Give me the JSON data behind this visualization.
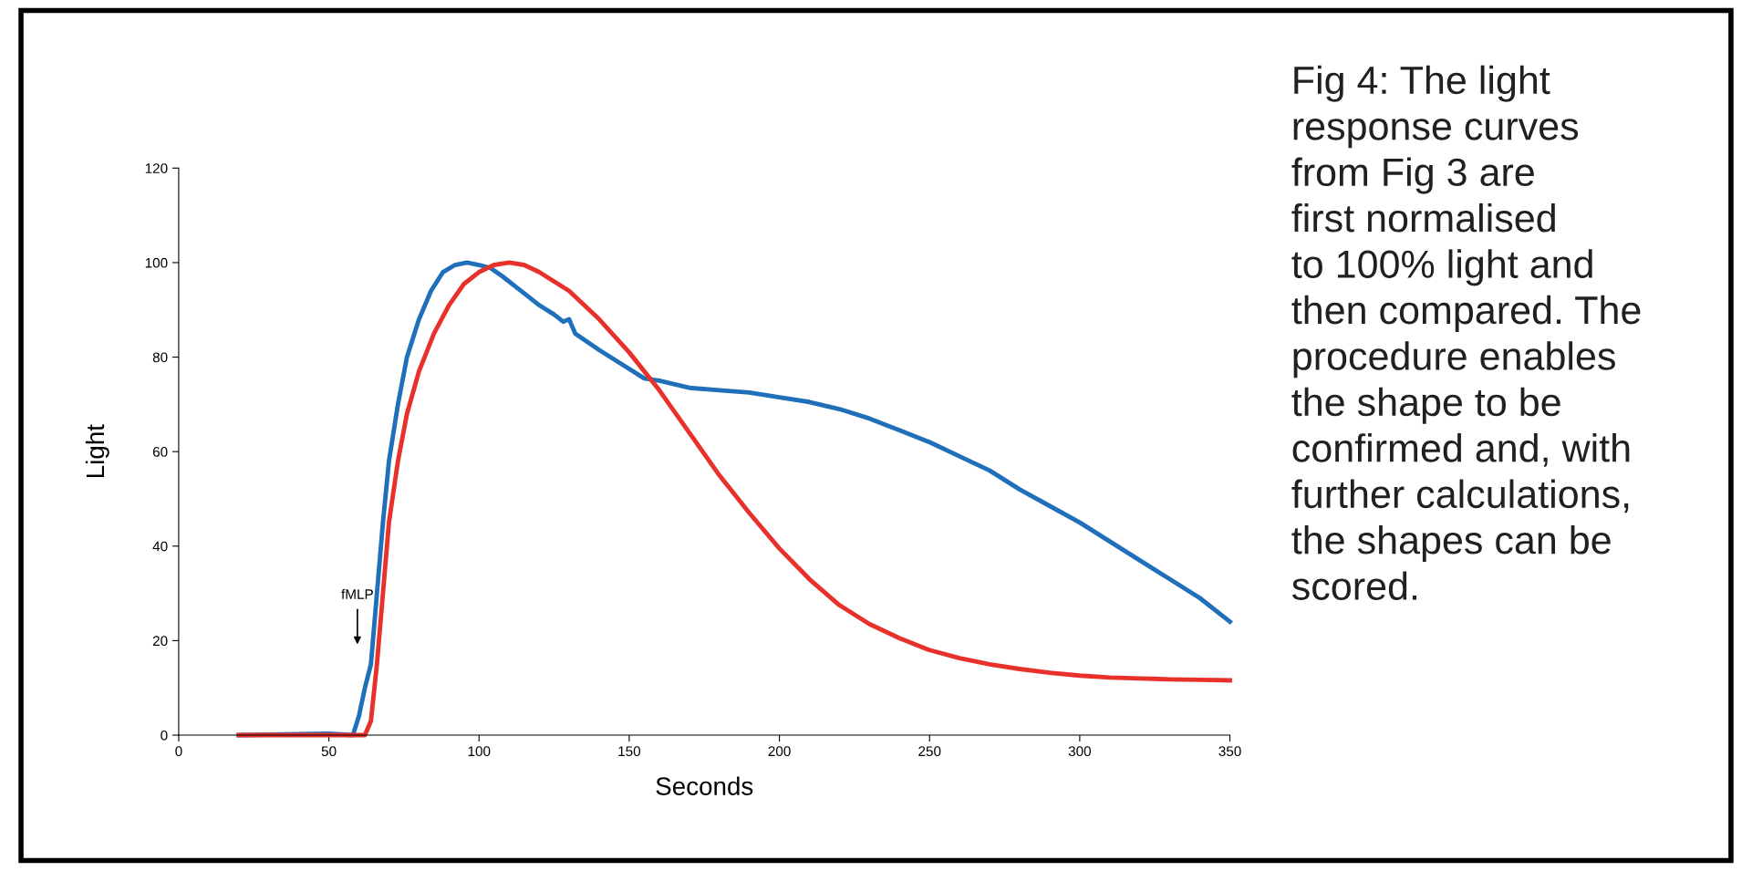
{
  "chart_data": {
    "type": "line",
    "xlabel": "Seconds",
    "ylabel": "Light",
    "xlim": [
      0,
      350
    ],
    "xticks": [
      0,
      50,
      100,
      150,
      200,
      250,
      300,
      350
    ],
    "ylim": [
      0,
      120
    ],
    "yticks": [
      0,
      20,
      40,
      60,
      80,
      100,
      120
    ],
    "grid": false,
    "marker": "none",
    "line_style": "solid",
    "series": [
      {
        "color": "#1f6fba",
        "x": [
          20,
          50,
          58,
          60,
          62,
          64,
          66,
          68,
          70,
          73,
          76,
          80,
          84,
          88,
          92,
          96,
          100,
          104,
          108,
          112,
          116,
          120,
          125,
          128,
          130,
          132,
          140,
          150,
          155,
          160,
          170,
          180,
          190,
          200,
          210,
          220,
          230,
          240,
          250,
          260,
          270,
          280,
          290,
          300,
          310,
          320,
          330,
          340,
          350
        ],
        "values": [
          0,
          0.3,
          0,
          4,
          10,
          15,
          30,
          45,
          58,
          70,
          80,
          88,
          94,
          98,
          99.5,
          100,
          99.5,
          98.8,
          97,
          95,
          93,
          91,
          89,
          87.5,
          88,
          85,
          81.5,
          77.5,
          75.5,
          75,
          73.5,
          73,
          72.5,
          71.5,
          70.5,
          69,
          67,
          64.5,
          62,
          59,
          56,
          52,
          48.5,
          45,
          41,
          37,
          33,
          29,
          24
        ]
      },
      {
        "color": "#e8312b",
        "x": [
          20,
          58,
          62,
          64,
          66,
          68,
          70,
          73,
          76,
          80,
          85,
          90,
          95,
          100,
          105,
          110,
          115,
          120,
          130,
          140,
          150,
          160,
          170,
          180,
          190,
          200,
          210,
          220,
          230,
          240,
          250,
          260,
          270,
          280,
          290,
          300,
          310,
          320,
          330,
          340,
          350
        ],
        "values": [
          0,
          0,
          0,
          3,
          15,
          30,
          45,
          58,
          68,
          77,
          85,
          91,
          95.5,
          98,
          99.5,
          100,
          99.5,
          98,
          94,
          88,
          81,
          73,
          64,
          55,
          47,
          39.5,
          33,
          27.5,
          23.5,
          20.5,
          18,
          16.3,
          15,
          14,
          13.2,
          12.6,
          12.2,
          12,
          11.8,
          11.7,
          11.6
        ]
      }
    ],
    "annotations": [
      "fMLP",
      "Fig 4: The light\nresponse curves\nfrom Fig 3 are\nfirst normalised\nto 100% light and\nthen compared. The\nprocedure enables\nthe shape to be\nconfirmed and, with\nfurther calculations,\nthe shapes can be\nscored."
    ]
  }
}
